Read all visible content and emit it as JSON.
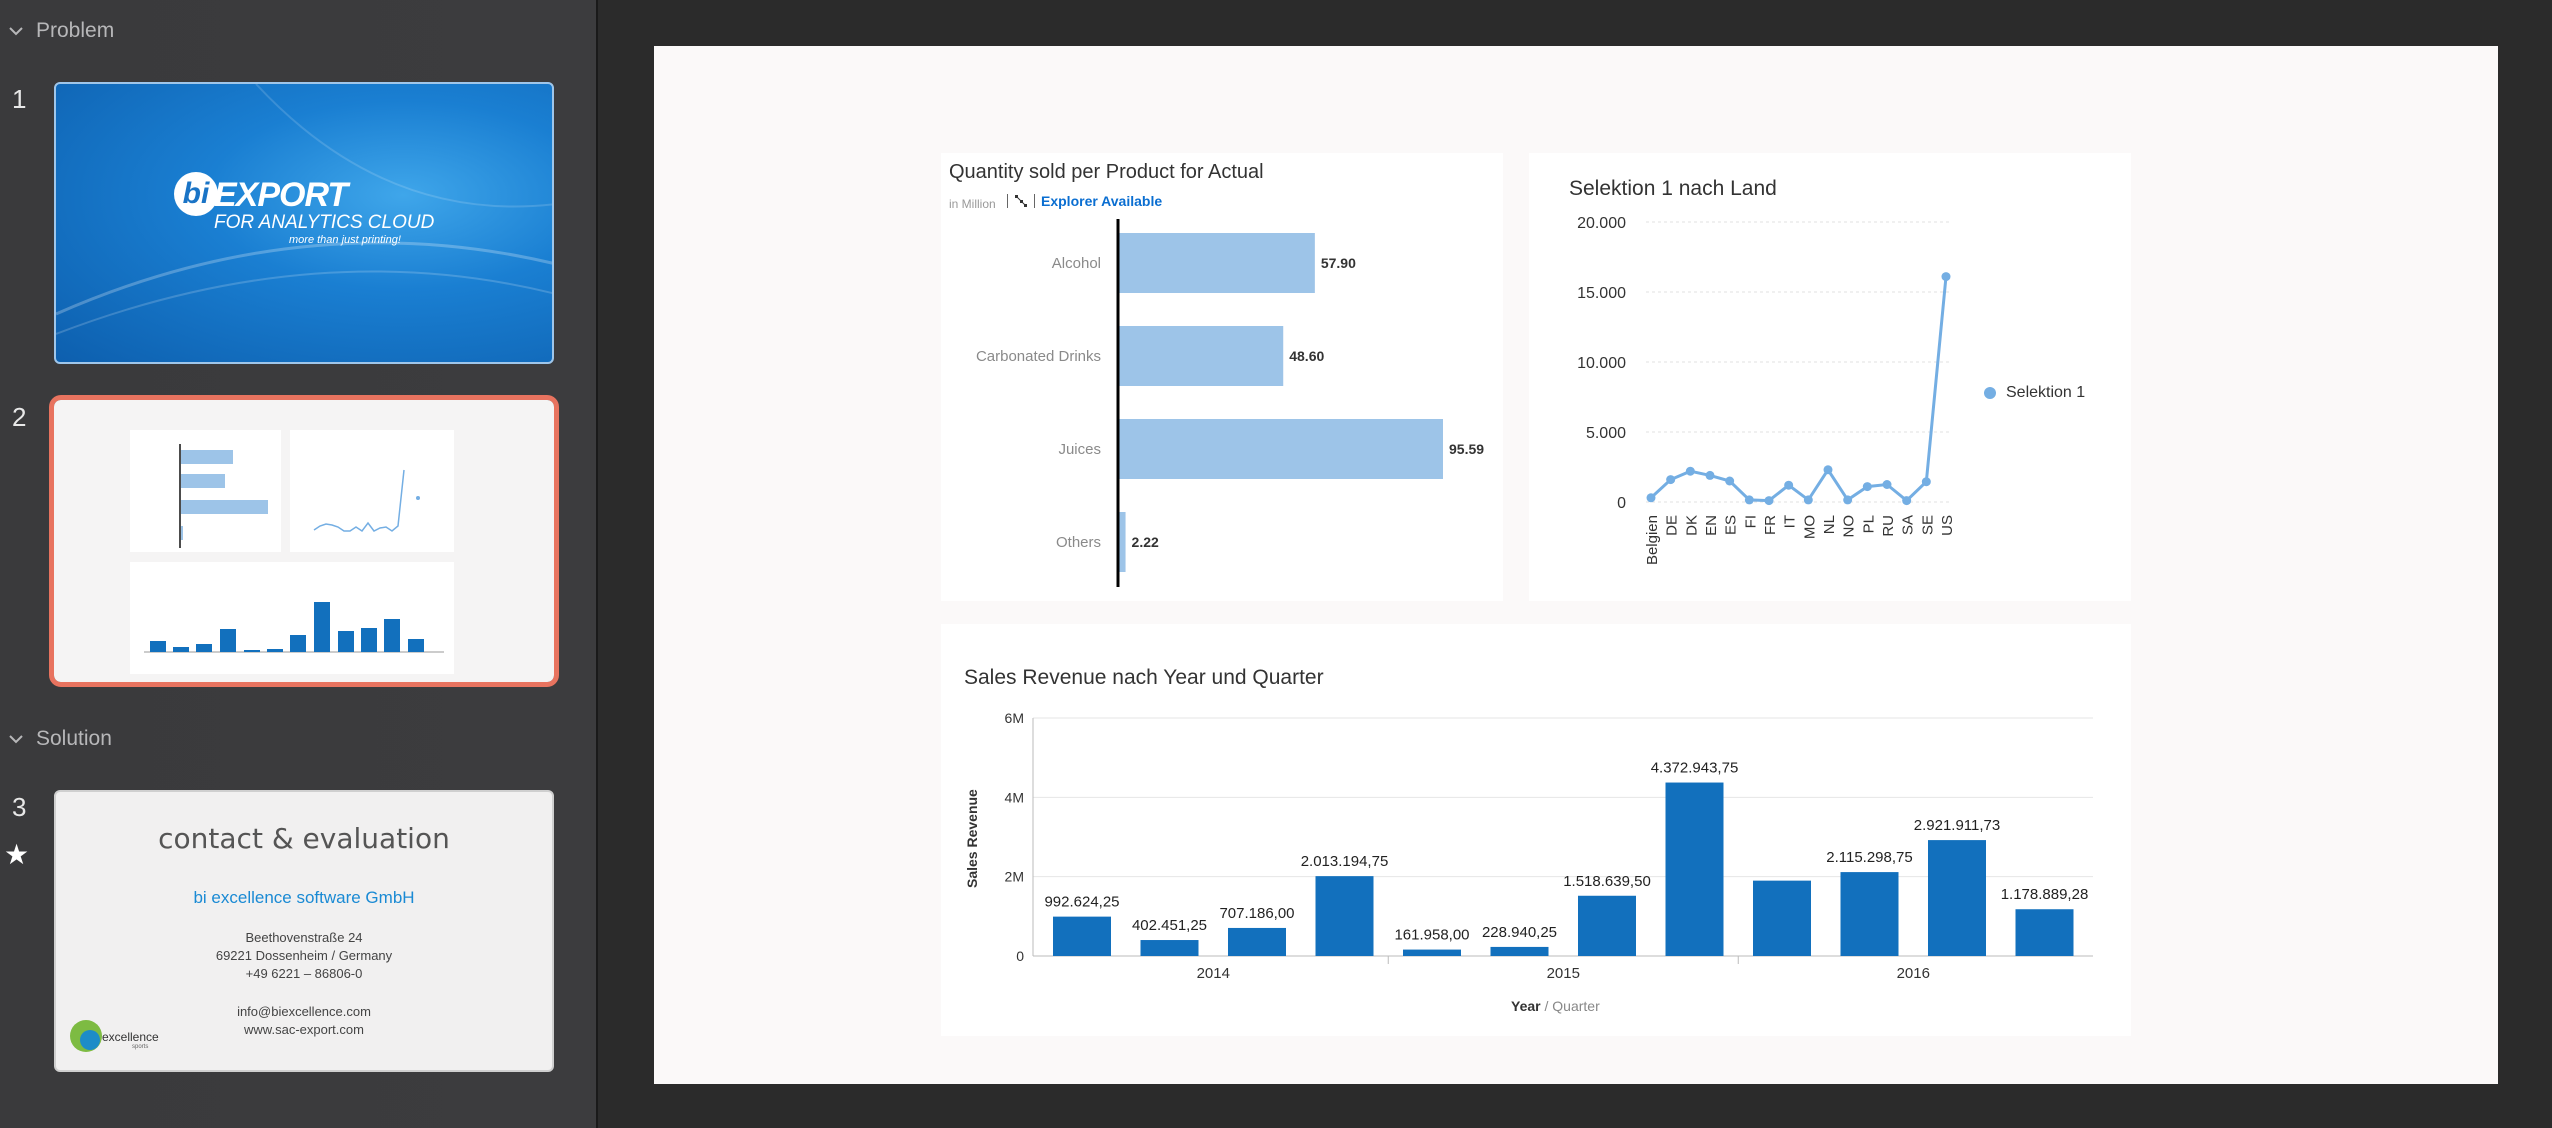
{
  "sidebar": {
    "sections": [
      {
        "label": "Problem"
      },
      {
        "label": "Solution"
      }
    ],
    "slides": [
      {
        "number": "1",
        "logo_letters": "bi",
        "logo_word": "EXPORT",
        "logo_sub": "FOR ANALYTICS CLOUD",
        "logo_tag": "more than just printing!"
      },
      {
        "number": "2"
      },
      {
        "number": "3",
        "title": "contact & evaluation",
        "company": "bi excellence software GmbH",
        "lines": [
          "Beethovenstraße 24",
          "69221 Dossenheim / Germany",
          "+49 6221 – 86806-0",
          "info@biexcellence.com",
          "www.sac-export.com"
        ],
        "logo_text": "excellence",
        "logo_sub": "sports"
      }
    ],
    "star_glyph": "★"
  },
  "slide": {
    "card1": {
      "title": "Quantity sold per Product for Actual",
      "unit": "in Million",
      "explorer": "Explorer Available"
    },
    "card2": {
      "title": "Selektion 1 nach Land",
      "legend": "Selektion 1"
    },
    "card3": {
      "title": "Sales Revenue nach Year und Quarter",
      "ylabel": "Sales Revenue",
      "xlabel": "Year",
      "xlabel_sub": "/ Quarter"
    }
  },
  "colors": {
    "bar_light": "#9dc4e8",
    "bar_dark": "#1270bd",
    "line": "#74aee3",
    "accent_selected": "#e8735f",
    "explorer_link": "#0a6ed1"
  },
  "chart_data": [
    {
      "type": "bar",
      "orientation": "horizontal",
      "title": "Quantity sold per Product for Actual",
      "unit": "in Million",
      "categories": [
        "Alcohol",
        "Carbonated Drinks",
        "Juices",
        "Others"
      ],
      "values": [
        57.9,
        48.6,
        95.59,
        2.22
      ],
      "data_labels": [
        "57.90",
        "48.60",
        "95.59",
        "2.22"
      ]
    },
    {
      "type": "line",
      "title": "Selektion 1 nach Land",
      "categories": [
        "Belgien",
        "DE",
        "DK",
        "EN",
        "ES",
        "FI",
        "FR",
        "IT",
        "MO",
        "NL",
        "NO",
        "PL",
        "RU",
        "SA",
        "SE",
        "US"
      ],
      "series": [
        {
          "name": "Selektion 1",
          "values": [
            300,
            1600,
            2200,
            1900,
            1500,
            150,
            100,
            1200,
            150,
            2300,
            150,
            1100,
            1250,
            100,
            1450,
            16100
          ]
        }
      ],
      "ylim": [
        0,
        20000
      ],
      "yticks": [
        "0",
        "5.000",
        "10.000",
        "15.000",
        "20.000"
      ],
      "legend": "right"
    },
    {
      "type": "bar",
      "title": "Sales Revenue nach Year und Quarter",
      "ylabel": "Sales Revenue",
      "xlabel": "Year / Quarter",
      "groups": [
        "2014",
        "2015",
        "2016"
      ],
      "values": [
        992624.25,
        402451.25,
        707186.0,
        2013194.75,
        161958.0,
        228940.25,
        1518639.5,
        4372943.75,
        1900000,
        2115298.75,
        2921911.73,
        1178889.28
      ],
      "data_labels": [
        "992.624,25",
        "402.451,25",
        "707.186,00",
        "2.013.194,75",
        "161.958,00",
        "228.940,25",
        "1.518.639,50",
        "4.372.943,75",
        "",
        "2.115.298,75",
        "2.921.911,73",
        "1.178.889,28"
      ],
      "ylim": [
        0,
        6000000
      ],
      "yticks": [
        "0",
        "2M",
        "4M",
        "6M"
      ]
    }
  ]
}
